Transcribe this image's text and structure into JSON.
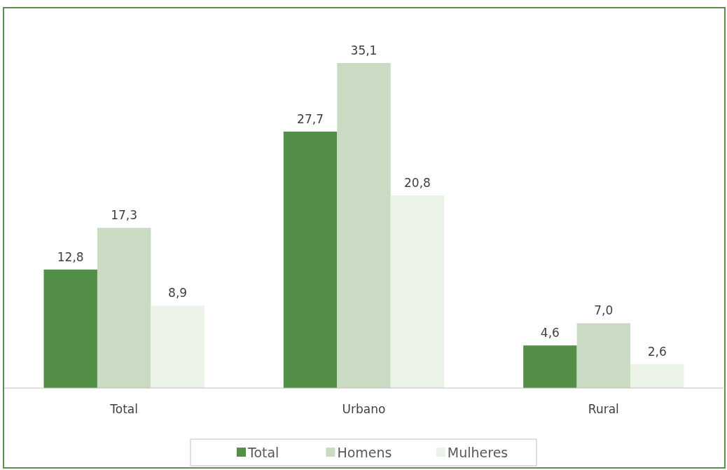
{
  "chart_data": {
    "type": "bar",
    "categories": [
      "Total",
      "Urbano",
      "Rural"
    ],
    "series": [
      {
        "name": "Total",
        "color": "#548f47",
        "values": [
          12.8,
          27.7,
          4.6
        ],
        "value_labels": [
          "12,8",
          "27,7",
          "4,6"
        ]
      },
      {
        "name": "Homens",
        "color": "#cadbc3",
        "values": [
          17.3,
          35.1,
          7.0
        ],
        "value_labels": [
          "17,3",
          "35,1",
          "7,0"
        ]
      },
      {
        "name": "Mulheres",
        "color": "#ebf3e8",
        "values": [
          8.9,
          20.8,
          2.6
        ],
        "value_labels": [
          "8,9",
          "20,8",
          "2,6"
        ]
      }
    ],
    "legend": "bottom"
  }
}
